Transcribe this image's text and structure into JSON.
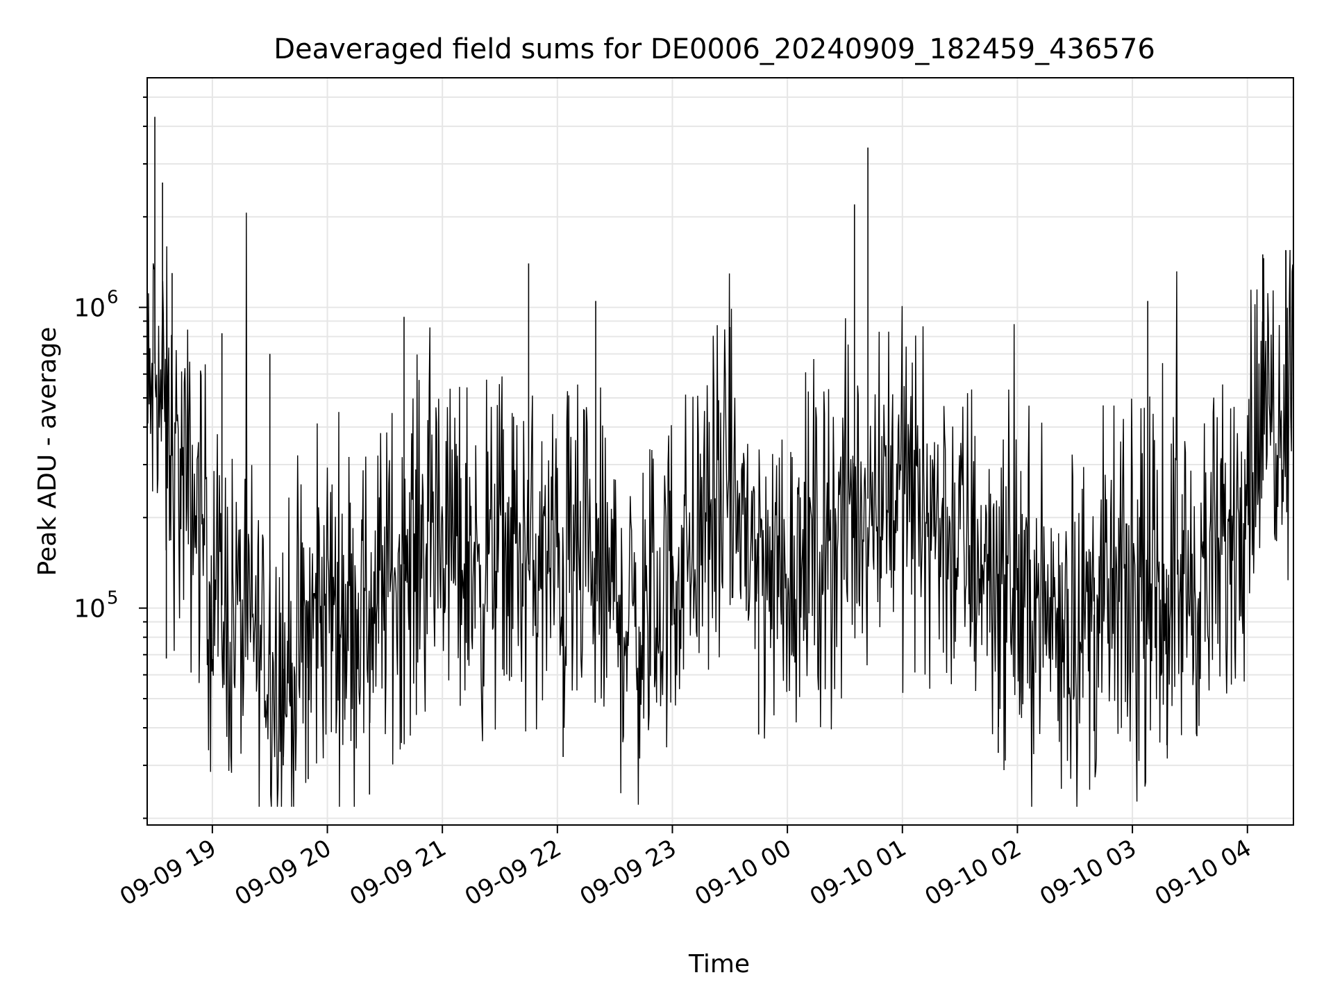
{
  "chart_data": {
    "type": "line",
    "title": "Deaveraged field sums for DE0006_20240909_182459_436576",
    "xlabel": "Time",
    "ylabel": "Peak ADU - average",
    "x_range": [
      "2024-09-09 18:26",
      "2024-09-10 04:24"
    ],
    "x_ticks": [
      {
        "t": "2024-09-09 19:00",
        "label": "09-09 19"
      },
      {
        "t": "2024-09-09 20:00",
        "label": "09-09 20"
      },
      {
        "t": "2024-09-09 21:00",
        "label": "09-09 21"
      },
      {
        "t": "2024-09-09 22:00",
        "label": "09-09 22"
      },
      {
        "t": "2024-09-09 23:00",
        "label": "09-09 23"
      },
      {
        "t": "2024-09-10 00:00",
        "label": "09-10 00"
      },
      {
        "t": "2024-09-10 01:00",
        "label": "09-10 01"
      },
      {
        "t": "2024-09-10 02:00",
        "label": "09-10 02"
      },
      {
        "t": "2024-09-10 03:00",
        "label": "09-10 03"
      },
      {
        "t": "2024-09-10 04:00",
        "label": "09-10 04"
      }
    ],
    "y_scale": "log",
    "ylim": [
      19000,
      5800000
    ],
    "y_ticks": [
      {
        "value": 100000,
        "base": "10",
        "exp": "5"
      },
      {
        "value": 1000000,
        "base": "10",
        "exp": "6"
      }
    ],
    "grid": true,
    "line_color": "#000000",
    "grid_color": "#e6e6e6",
    "series": [
      {
        "values_note_free": true,
        "x": [
          "2024-09-09 18:26",
          "2024-09-09 18:30",
          "2024-09-09 18:35",
          "2024-09-09 18:40",
          "2024-09-09 18:45",
          "2024-09-09 18:50",
          "2024-09-09 18:55",
          "2024-09-09 19:00",
          "2024-09-09 19:10",
          "2024-09-09 19:20",
          "2024-09-09 19:30",
          "2024-09-09 19:40",
          "2024-09-09 19:50",
          "2024-09-09 20:00",
          "2024-09-09 20:10",
          "2024-09-09 20:20",
          "2024-09-09 20:30",
          "2024-09-09 20:40",
          "2024-09-09 20:50",
          "2024-09-09 21:00",
          "2024-09-09 21:10",
          "2024-09-09 21:20",
          "2024-09-09 21:30",
          "2024-09-09 21:40",
          "2024-09-09 21:50",
          "2024-09-09 22:00",
          "2024-09-09 22:10",
          "2024-09-09 22:20",
          "2024-09-09 22:30",
          "2024-09-09 22:40",
          "2024-09-09 22:50",
          "2024-09-09 23:00",
          "2024-09-09 23:10",
          "2024-09-09 23:20",
          "2024-09-09 23:30",
          "2024-09-09 23:40",
          "2024-09-09 23:50",
          "2024-09-10 00:00",
          "2024-09-10 00:10",
          "2024-09-10 00:20",
          "2024-09-10 00:30",
          "2024-09-10 00:40",
          "2024-09-10 00:50",
          "2024-09-10 01:00",
          "2024-09-10 01:10",
          "2024-09-10 01:20",
          "2024-09-10 01:30",
          "2024-09-10 01:40",
          "2024-09-10 01:50",
          "2024-09-10 02:00",
          "2024-09-10 02:10",
          "2024-09-10 02:20",
          "2024-09-10 02:30",
          "2024-09-10 02:40",
          "2024-09-10 02:50",
          "2024-09-10 03:00",
          "2024-09-10 03:10",
          "2024-09-10 03:20",
          "2024-09-10 03:30",
          "2024-09-10 03:40",
          "2024-09-10 03:50",
          "2024-09-10 04:00",
          "2024-09-10 04:10",
          "2024-09-10 04:20",
          "2024-09-10 04:24"
        ],
        "values": [
          380000,
          650000,
          420000,
          300000,
          250000,
          220000,
          200000,
          110000,
          95000,
          85000,
          70000,
          60000,
          75000,
          110000,
          100000,
          95000,
          120000,
          140000,
          170000,
          180000,
          150000,
          140000,
          160000,
          150000,
          130000,
          140000,
          130000,
          120000,
          110000,
          85000,
          95000,
          130000,
          160000,
          200000,
          250000,
          170000,
          130000,
          140000,
          150000,
          170000,
          190000,
          220000,
          280000,
          260000,
          220000,
          190000,
          160000,
          150000,
          130000,
          110000,
          100000,
          95000,
          90000,
          95000,
          110000,
          100000,
          105000,
          120000,
          125000,
          130000,
          150000,
          330000,
          450000,
          550000,
          600000
        ],
        "spikes": [
          {
            "t": "2024-09-09 18:26",
            "value": 2400000
          },
          {
            "t": "2024-09-09 18:30",
            "value": 4300000
          },
          {
            "t": "2024-09-09 18:34",
            "value": 2600000
          },
          {
            "t": "2024-09-09 18:39",
            "value": 1300000
          },
          {
            "t": "2024-09-09 18:36",
            "value": 68000
          },
          {
            "t": "2024-09-09 19:05",
            "value": 820000
          },
          {
            "t": "2024-09-09 19:30",
            "value": 700000
          },
          {
            "t": "2024-09-09 19:37",
            "value": 30000
          },
          {
            "t": "2024-09-09 19:50",
            "value": 27000
          },
          {
            "t": "2024-09-09 20:22",
            "value": 24000
          },
          {
            "t": "2024-09-09 20:40",
            "value": 930000
          },
          {
            "t": "2024-09-09 21:45",
            "value": 1400000
          },
          {
            "t": "2024-09-09 22:03",
            "value": 32000
          },
          {
            "t": "2024-09-09 22:20",
            "value": 1050000
          },
          {
            "t": "2024-09-09 23:30",
            "value": 860000
          },
          {
            "t": "2024-09-09 23:45",
            "value": 38000
          },
          {
            "t": "2024-09-10 00:35",
            "value": 2200000
          },
          {
            "t": "2024-09-10 00:42",
            "value": 3400000
          },
          {
            "t": "2024-09-10 01:50",
            "value": 33000
          },
          {
            "t": "2024-09-10 02:40",
            "value": 39000
          },
          {
            "t": "2024-09-10 03:08",
            "value": 1050000
          },
          {
            "t": "2024-09-10 03:18",
            "value": 35000
          },
          {
            "t": "2024-09-10 04:08",
            "value": 1500000
          },
          {
            "t": "2024-09-10 04:20",
            "value": 1550000
          }
        ]
      }
    ]
  }
}
